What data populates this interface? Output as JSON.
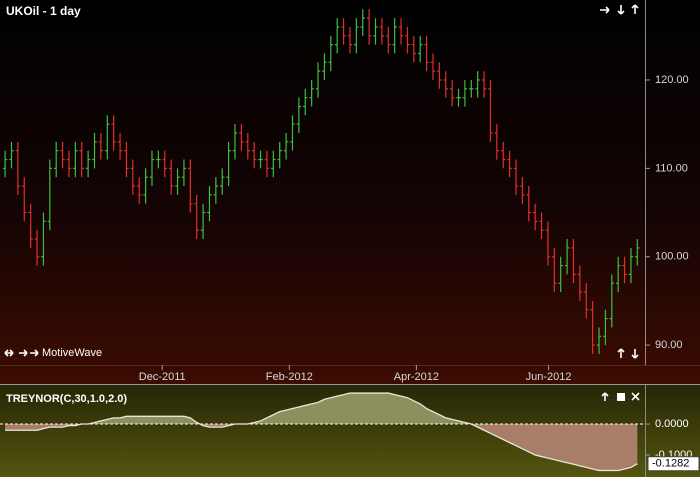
{
  "chart_data": [
    {
      "type": "ohlc",
      "title": "UKOil - 1 day",
      "branding": "MotiveWave",
      "up_color": "#3fbf3f",
      "down_color": "#e0302a",
      "open": [
        110,
        111,
        112,
        108,
        105,
        102,
        100,
        104,
        110,
        112,
        111,
        110,
        112,
        110,
        111,
        113,
        112,
        115,
        113,
        112,
        110,
        108,
        107,
        109,
        111,
        111,
        110,
        108,
        109,
        110,
        106,
        103,
        105,
        107,
        108,
        109,
        112,
        114,
        113,
        112,
        111,
        111,
        110,
        111,
        112,
        113,
        115,
        117,
        118,
        119,
        121,
        122,
        124,
        126,
        125,
        124,
        126,
        127,
        125,
        126,
        125,
        124,
        126,
        125,
        124,
        123,
        124,
        122,
        121,
        120,
        119,
        118,
        118,
        119,
        119,
        120,
        119,
        114,
        112,
        111,
        110,
        108,
        107,
        105,
        104,
        103,
        100,
        97,
        99,
        101,
        98,
        96,
        94,
        90,
        91,
        93,
        97,
        99,
        98,
        100
      ],
      "high": [
        112,
        113,
        113,
        109,
        106,
        103,
        105,
        111,
        113,
        113,
        112,
        113,
        113,
        112,
        114,
        114,
        116,
        116,
        114,
        113,
        111,
        109,
        110,
        112,
        112,
        112,
        111,
        110,
        111,
        111,
        107,
        106,
        108,
        109,
        110,
        113,
        115,
        115,
        114,
        113,
        112,
        112,
        112,
        113,
        114,
        116,
        118,
        119,
        120,
        122,
        123,
        125,
        127,
        127,
        126,
        127,
        128,
        128,
        127,
        127,
        126,
        127,
        127,
        126,
        125,
        125,
        125,
        123,
        122,
        121,
        120,
        119,
        120,
        120,
        121,
        121,
        120,
        115,
        113,
        112,
        111,
        109,
        108,
        106,
        105,
        104,
        101,
        100,
        102,
        102,
        99,
        97,
        95,
        92,
        94,
        98,
        100,
        100,
        101,
        102
      ],
      "low": [
        109,
        110,
        107,
        104,
        101,
        99,
        99,
        103,
        109,
        110,
        109,
        109,
        109,
        109,
        110,
        111,
        111,
        112,
        111,
        109,
        107,
        106,
        106,
        108,
        110,
        109,
        107,
        107,
        108,
        105,
        102,
        102,
        104,
        106,
        107,
        108,
        111,
        112,
        111,
        110,
        110,
        109,
        109,
        110,
        111,
        112,
        114,
        116,
        117,
        118,
        120,
        121,
        123,
        124,
        123,
        123,
        125,
        124,
        124,
        124,
        123,
        123,
        124,
        123,
        122,
        122,
        121,
        120,
        119,
        118,
        117,
        117,
        117,
        118,
        118,
        118,
        113,
        111,
        110,
        109,
        107,
        106,
        104,
        103,
        102,
        99,
        96,
        96,
        98,
        97,
        95,
        93,
        89,
        89,
        90,
        92,
        96,
        97,
        97,
        99
      ],
      "close": [
        111,
        112,
        108,
        105,
        102,
        100,
        104,
        110,
        112,
        111,
        110,
        112,
        110,
        111,
        113,
        112,
        115,
        113,
        112,
        110,
        108,
        107,
        109,
        111,
        111,
        110,
        108,
        109,
        110,
        106,
        103,
        105,
        107,
        108,
        109,
        112,
        114,
        113,
        112,
        111,
        111,
        110,
        111,
        112,
        113,
        115,
        117,
        118,
        119,
        121,
        122,
        124,
        126,
        125,
        124,
        126,
        127,
        125,
        126,
        125,
        124,
        126,
        125,
        124,
        123,
        124,
        122,
        121,
        120,
        119,
        118,
        118,
        119,
        119,
        120,
        119,
        114,
        112,
        111,
        110,
        108,
        107,
        105,
        104,
        103,
        100,
        97,
        99,
        101,
        98,
        96,
        94,
        90,
        91,
        93,
        97,
        99,
        98,
        100,
        101
      ],
      "xlim": [
        -0.8,
        100.2
      ],
      "xticks": [
        {
          "value": 24.6,
          "label": "Dec-2011"
        },
        {
          "value": 44.5,
          "label": "Feb-2012"
        },
        {
          "value": 64.4,
          "label": "Apr-2012"
        },
        {
          "value": 85.1,
          "label": "Jun-2012"
        }
      ],
      "ylim": [
        87.75,
        129.05
      ],
      "yticks": [
        {
          "value": 90,
          "label": "90.00"
        },
        {
          "value": 100,
          "label": "100.00"
        },
        {
          "value": 110,
          "label": "110.00"
        },
        {
          "value": 120,
          "label": "120.00"
        }
      ]
    },
    {
      "type": "area",
      "title": "TREYNOR(C,30,1.0,2.0)",
      "line_color": "#e8e8d8",
      "above_color": "#8c8f5e",
      "below_color": "#a87e68",
      "values": [
        -0.02,
        -0.02,
        -0.02,
        -0.02,
        -0.02,
        -0.02,
        -0.015,
        -0.01,
        -0.01,
        -0.01,
        -0.005,
        -0.005,
        0,
        0,
        0.005,
        0.01,
        0.015,
        0.02,
        0.02,
        0.025,
        0.025,
        0.025,
        0.025,
        0.025,
        0.025,
        0.025,
        0.025,
        0.025,
        0.025,
        0.02,
        0.005,
        -0.005,
        -0.01,
        -0.01,
        -0.01,
        -0.005,
        0,
        0,
        0,
        0.005,
        0.01,
        0.02,
        0.03,
        0.04,
        0.045,
        0.05,
        0.055,
        0.06,
        0.065,
        0.07,
        0.08,
        0.085,
        0.09,
        0.095,
        0.1,
        0.1,
        0.1,
        0.1,
        0.1,
        0.1,
        0.1,
        0.095,
        0.09,
        0.085,
        0.075,
        0.065,
        0.05,
        0.04,
        0.03,
        0.02,
        0.015,
        0.01,
        0.005,
        0,
        -0.01,
        -0.02,
        -0.03,
        -0.04,
        -0.05,
        -0.06,
        -0.07,
        -0.08,
        -0.09,
        -0.1,
        -0.105,
        -0.11,
        -0.115,
        -0.12,
        -0.125,
        -0.13,
        -0.135,
        -0.14,
        -0.145,
        -0.15,
        -0.15,
        -0.15,
        -0.15,
        -0.145,
        -0.14,
        -0.1282
      ],
      "xlim": [
        -0.8,
        100.2
      ],
      "ylim": [
        -0.171,
        0.126
      ],
      "yticks": [
        {
          "value": 0,
          "label": "0.0000"
        },
        {
          "value": -0.1,
          "label": "-0.1000"
        }
      ]
    }
  ]
}
